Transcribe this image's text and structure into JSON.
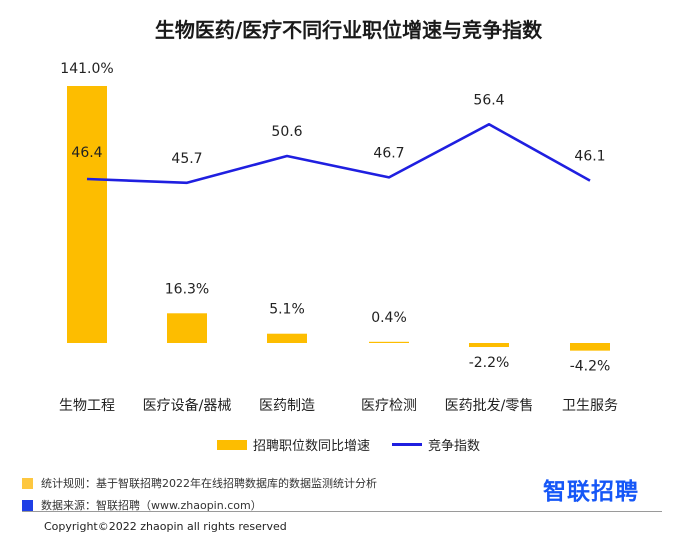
{
  "title": "生物医药/医疗不同行业职位增速与竞争指数",
  "chart_data": {
    "type": "bar",
    "categories": [
      "生物工程",
      "医疗设备/器械",
      "医药制造",
      "医疗检测",
      "医药批发/零售",
      "卫生服务"
    ],
    "series": [
      {
        "name": "招聘职位数同比增速",
        "type": "bar",
        "values": [
          141.0,
          16.3,
          5.1,
          0.4,
          -2.2,
          -4.2
        ],
        "labels": [
          "141.0%",
          "16.3%",
          "5.1%",
          "0.4%",
          "-2.2%",
          "-4.2%"
        ],
        "color": "#FDBD00"
      },
      {
        "name": "竞争指数",
        "type": "line",
        "values": [
          46.4,
          45.7,
          50.6,
          46.7,
          56.4,
          46.1
        ],
        "labels": [
          "46.4",
          "45.7",
          "50.6",
          "46.7",
          "56.4",
          "46.1"
        ],
        "color": "#1F1FE0"
      }
    ],
    "legend_position": "bottom",
    "grid": false
  },
  "legend": {
    "bar_label": "招聘职位数同比增速",
    "line_label": "竞争指数"
  },
  "notes": {
    "rule": "统计规则：基于智联招聘2022年在线招聘数据库的数据监测统计分析",
    "source": "数据来源：智联招聘（www.zhaopin.com）",
    "rule_color": "#FDC740",
    "source_color": "#1F3FE6"
  },
  "brand": "智联招聘",
  "copyright": "Copyright©2022 zhaopin all rights reserved"
}
